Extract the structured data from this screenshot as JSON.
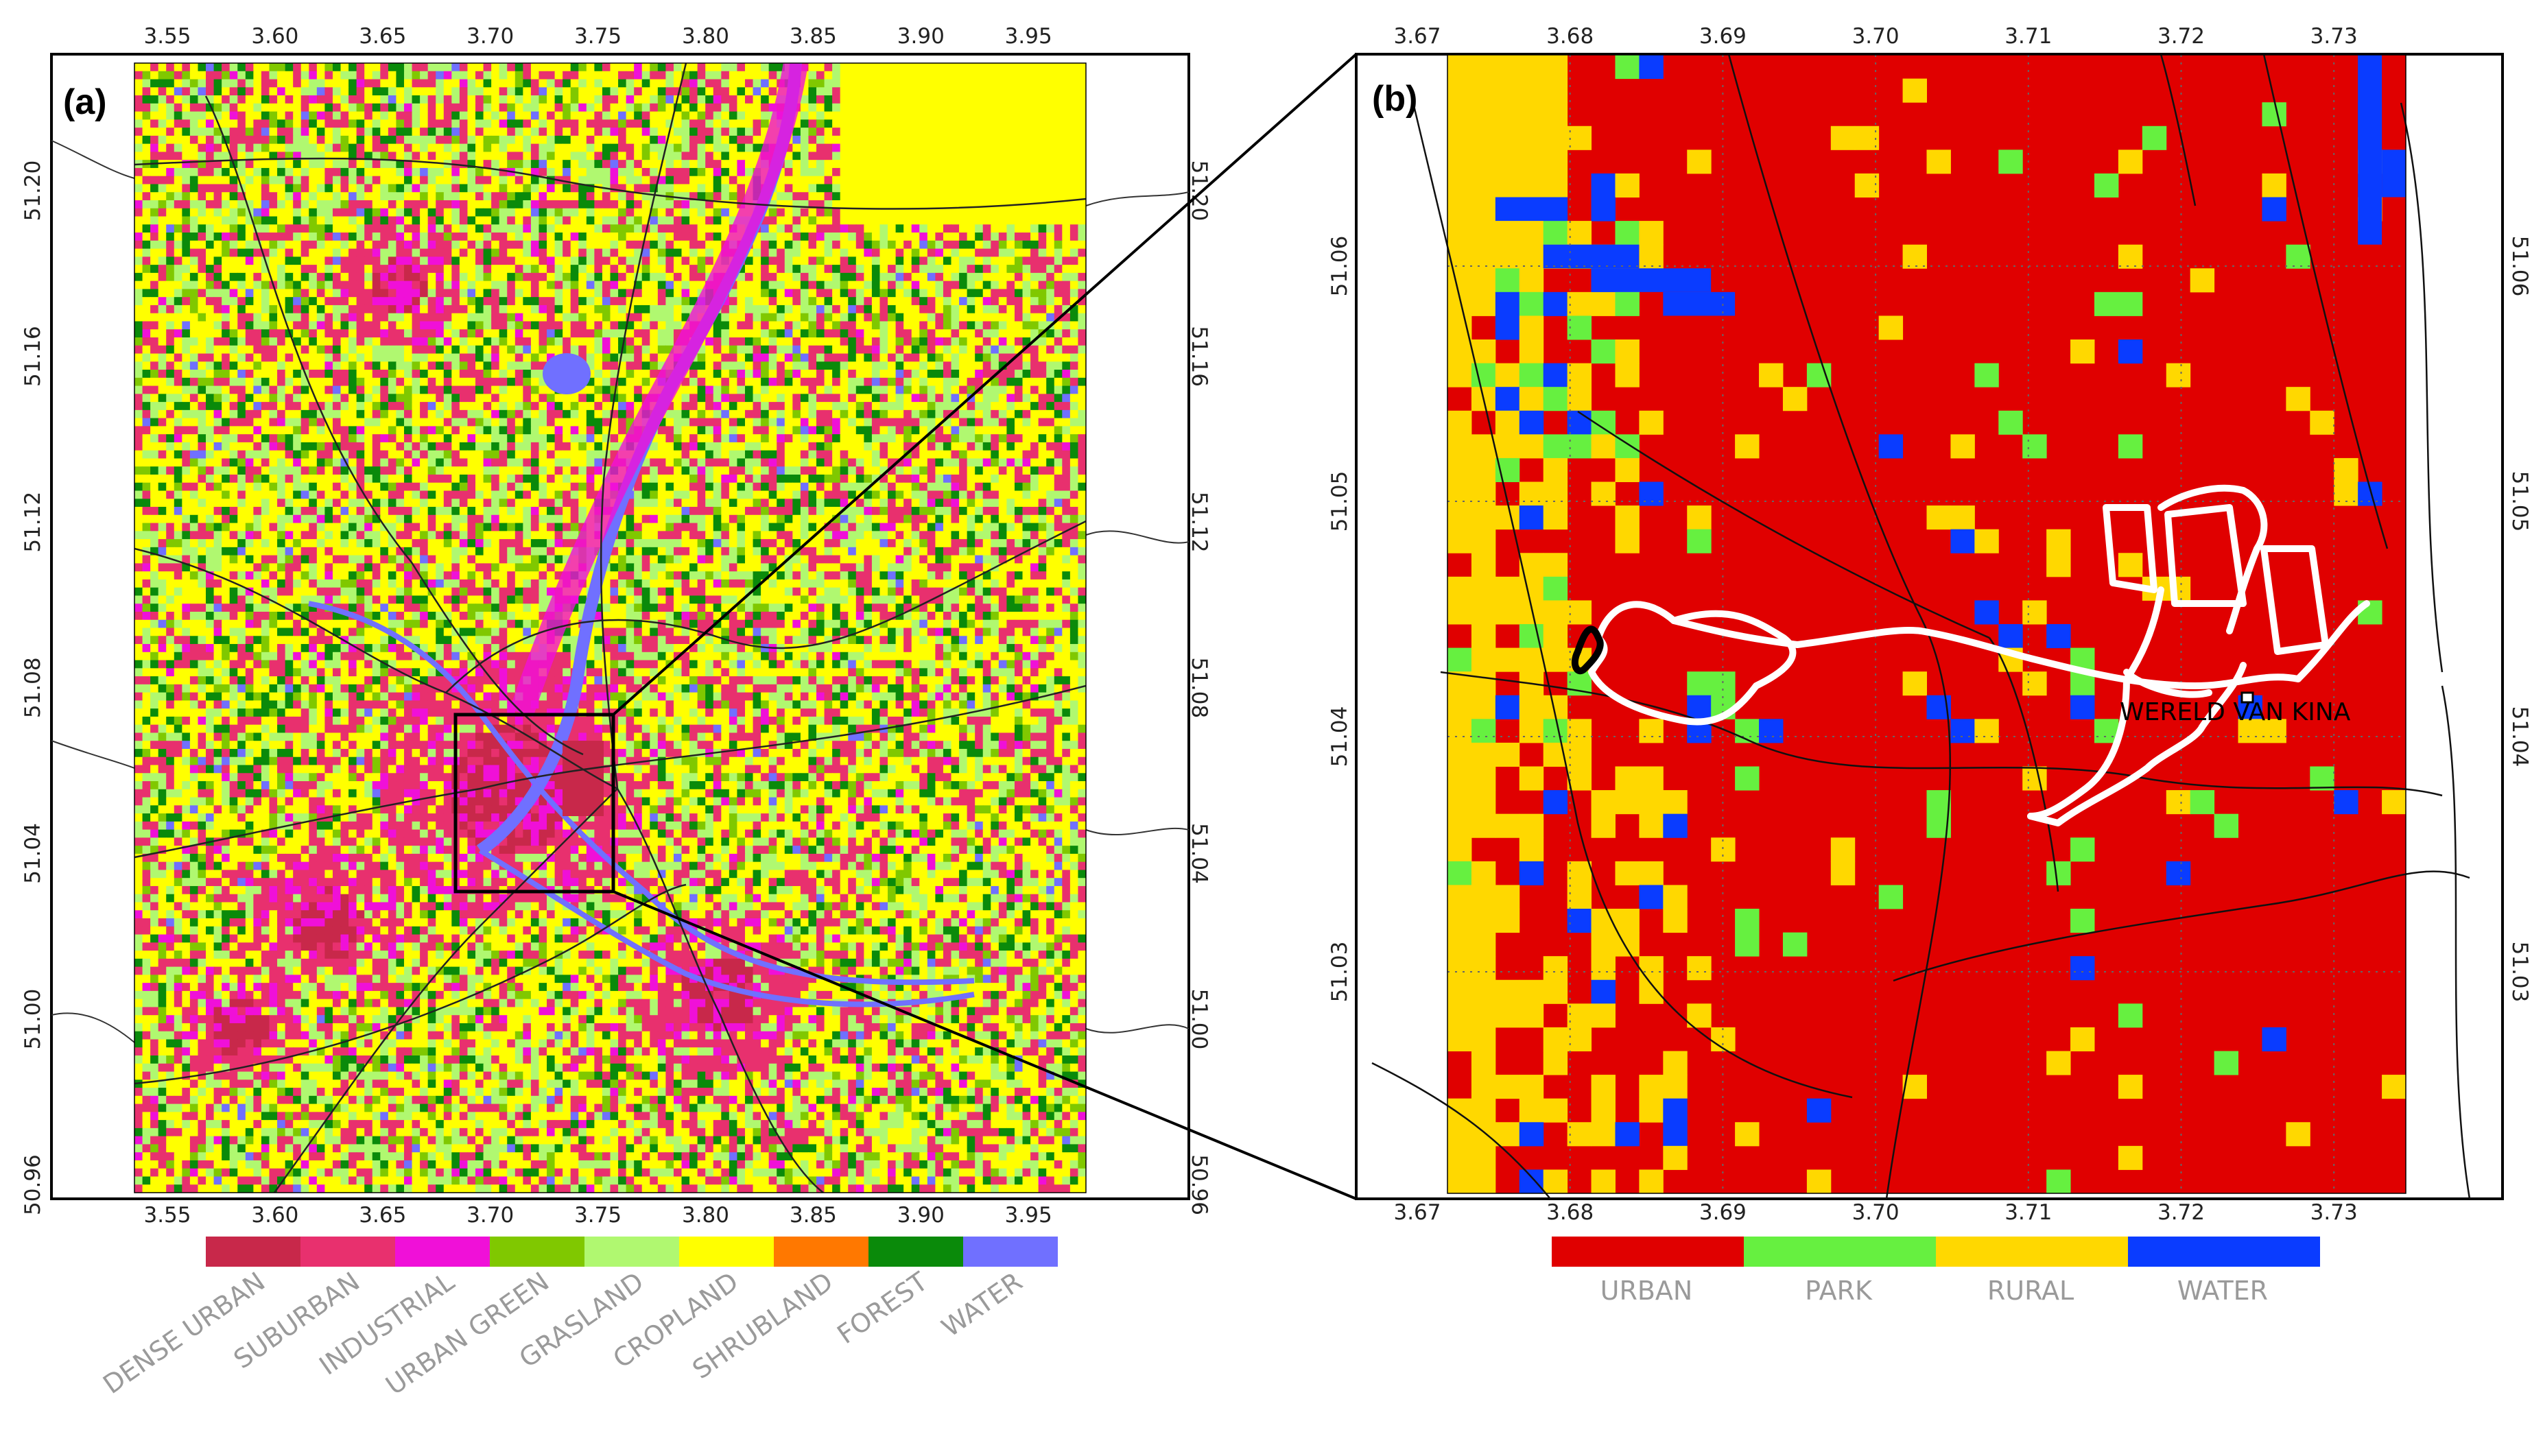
{
  "panels": [
    {
      "label": "(a)",
      "x_ticks": [
        "3.55",
        "3.60",
        "3.65",
        "3.70",
        "3.75",
        "3.80",
        "3.85",
        "3.90",
        "3.95"
      ],
      "y_ticks": [
        "51.20",
        "51.16",
        "51.12",
        "51.08",
        "51.04",
        "51.00",
        "50.96"
      ],
      "legend": [
        {
          "name": "DENSE URBAN",
          "color": "#c8284a"
        },
        {
          "name": "SUBURBAN",
          "color": "#e8306e"
        },
        {
          "name": "INDUSTRIAL",
          "color": "#f010d8"
        },
        {
          "name": "URBAN GREEN",
          "color": "#80c800"
        },
        {
          "name": "GRASLAND",
          "color": "#b0f870"
        },
        {
          "name": "CROPLAND",
          "color": "#ffff00"
        },
        {
          "name": "SHRUBLAND",
          "color": "#ff7800"
        },
        {
          "name": "FOREST",
          "color": "#0a8a0a"
        },
        {
          "name": "WATER",
          "color": "#7070ff"
        }
      ]
    },
    {
      "label": "(b)",
      "x_ticks": [
        "3.67",
        "3.68",
        "3.69",
        "3.70",
        "3.71",
        "3.72",
        "3.73"
      ],
      "y_ticks": [
        "51.06",
        "51.05",
        "51.04",
        "51.03"
      ],
      "site_label": "WERELD VAN KINA",
      "legend": [
        {
          "name": "URBAN",
          "color": "#e00000"
        },
        {
          "name": "PARK",
          "color": "#66f040"
        },
        {
          "name": "RURAL",
          "color": "#ffd800"
        },
        {
          "name": "WATER",
          "color": "#0a3cff"
        }
      ]
    }
  ]
}
